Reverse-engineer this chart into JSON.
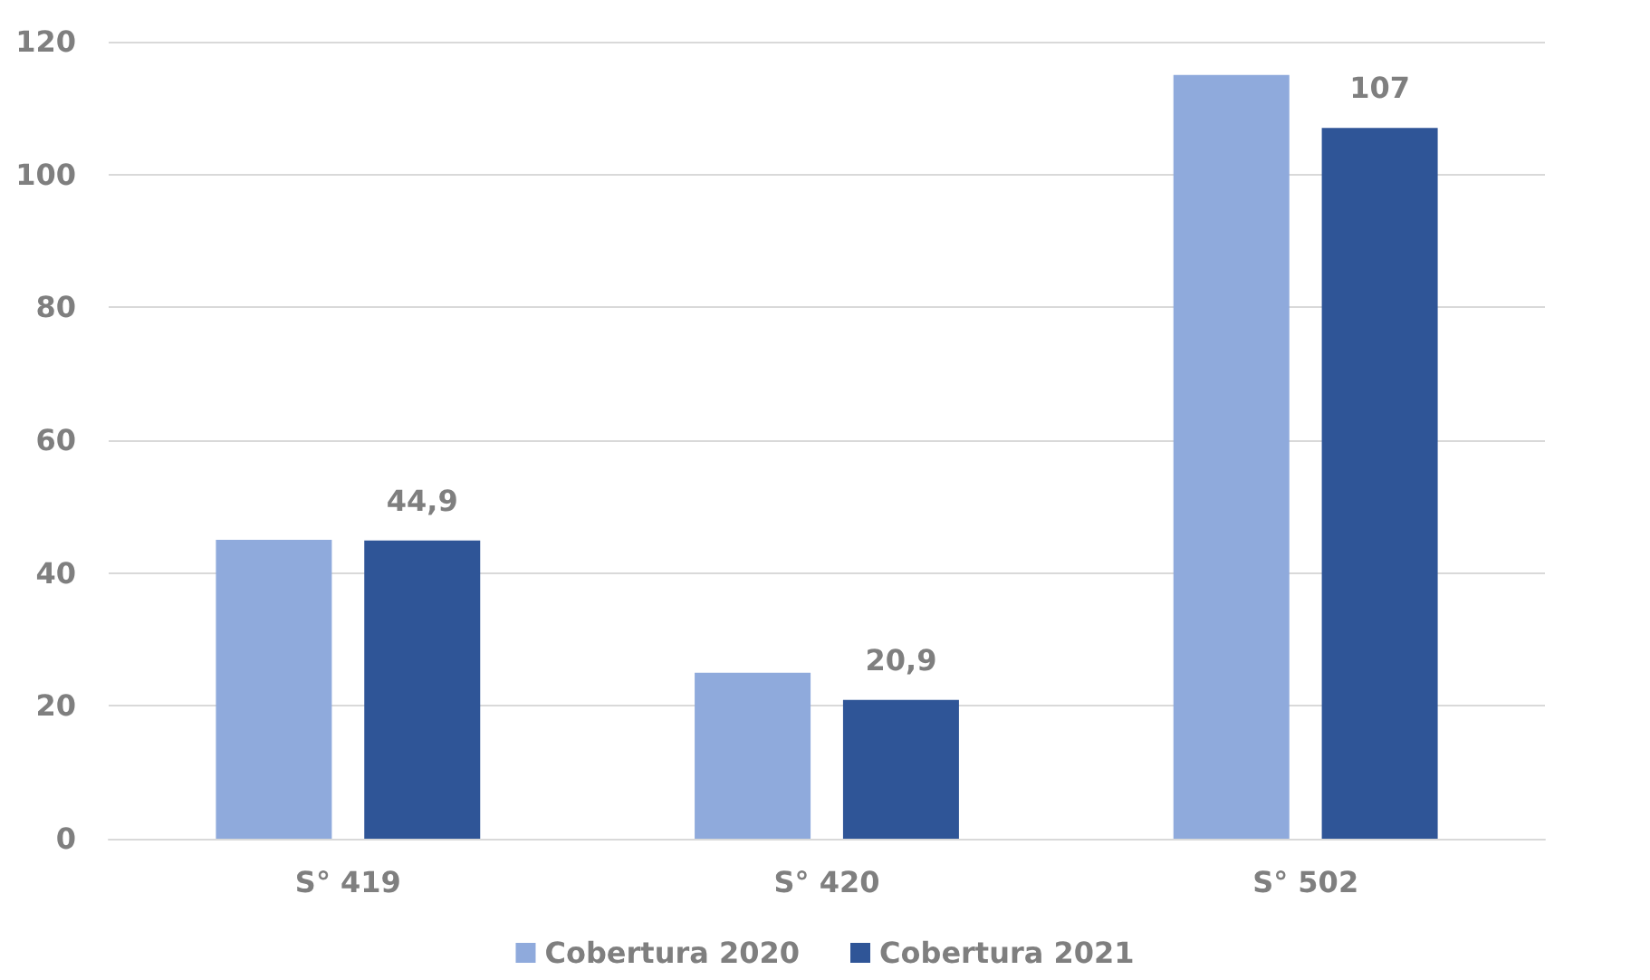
{
  "chart_data": {
    "type": "bar",
    "categories": [
      "S° 419",
      "S° 420",
      "S° 502"
    ],
    "series": [
      {
        "name": "Cobertura 2020",
        "color": "#8faadc",
        "values": [
          45,
          25,
          115
        ]
      },
      {
        "name": "Cobertura 2021",
        "color": "#2f5597",
        "values": [
          44.9,
          20.9,
          107
        ],
        "value_labels": [
          "44,9",
          "20,9",
          "107"
        ]
      }
    ],
    "ylim": [
      0,
      120
    ],
    "yticks": [
      0,
      20,
      40,
      60,
      80,
      100,
      120
    ],
    "grid": "y",
    "legend": "bottom"
  }
}
